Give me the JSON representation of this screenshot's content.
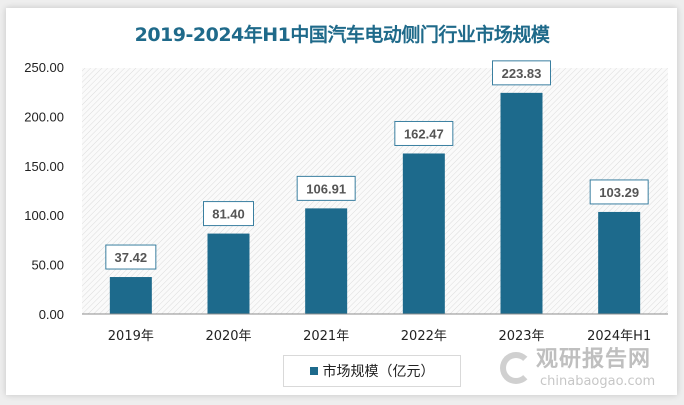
{
  "chart_data": {
    "type": "bar",
    "title": "2019-2024年H1中国汽车电动侧门行业市场规模",
    "categories": [
      "2019年",
      "2020年",
      "2021年",
      "2022年",
      "2023年",
      "2024年H1"
    ],
    "series": [
      {
        "name": "市场规模（亿元）",
        "values": [
          37.42,
          81.4,
          106.91,
          162.47,
          223.83,
          103.29
        ]
      }
    ],
    "data_labels": [
      "37.42",
      "81.40",
      "106.91",
      "162.47",
      "223.83",
      "103.29"
    ],
    "yticks": [
      "0.00",
      "50.00",
      "100.00",
      "150.00",
      "200.00",
      "250.00"
    ],
    "ylim": [
      0,
      250
    ],
    "xlabel": "",
    "ylabel": "",
    "grid": false,
    "legend": "bottom",
    "colors": {
      "bar": "#1d6a8c",
      "title": "#1f6a8a",
      "label_border": "#3a7fa0"
    }
  },
  "watermark": {
    "cn": "观研报告网",
    "en": "chinabaogao.com"
  }
}
